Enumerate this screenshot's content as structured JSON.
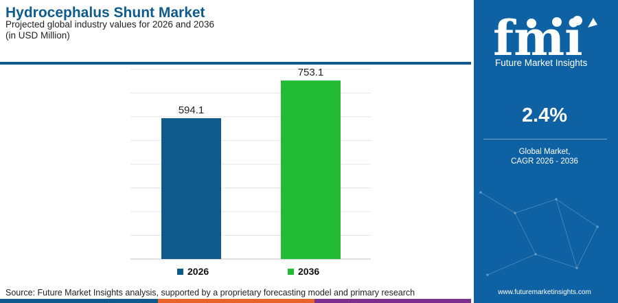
{
  "header": {
    "title": "Hydrocephalus Shunt Market",
    "subtitle_line1": "Projected global industry values for 2026 and 2036",
    "subtitle_line2": "(in USD Million)"
  },
  "chart_data": {
    "type": "bar",
    "categories": [
      "2026",
      "2036"
    ],
    "values": [
      594.1,
      753.1
    ],
    "value_labels": [
      "594.1",
      "753.1"
    ],
    "colors": [
      "#0f5a8c",
      "#22bb33"
    ],
    "ylim": [
      0,
      800
    ],
    "grid": true,
    "legend": {
      "position": "bottom",
      "entries": [
        "2026",
        "2036"
      ]
    }
  },
  "footer": {
    "source": "Source: Future Market Insights analysis, supported by a proprietary forecasting model and primary research"
  },
  "sidebar": {
    "logo_text": "Future Market Insights",
    "cagr_value": "2.4%",
    "cagr_label_line1": "Global Market,",
    "cagr_label_line2": "CAGR 2026 - 2036",
    "website": "www.futuremarketinsights.com"
  },
  "colors": {
    "brand_blue": "#0f5a8c",
    "sidebar_blue": "#0e62a4",
    "accent_green": "#22bb33",
    "accent_orange": "#e8632a",
    "accent_purple": "#7b2f8e"
  }
}
